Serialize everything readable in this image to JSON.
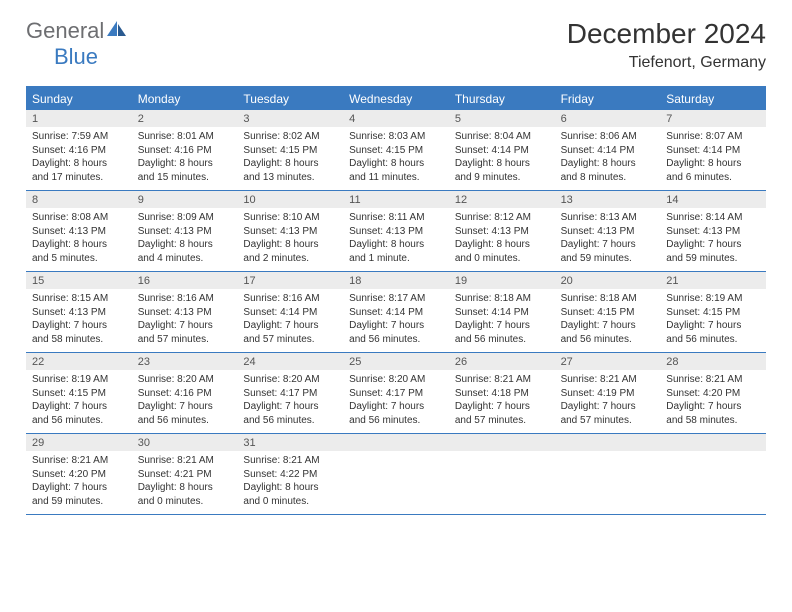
{
  "logo": {
    "general": "General",
    "blue": "Blue"
  },
  "title": "December 2024",
  "subtitle": "Tiefenort, Germany",
  "colors": {
    "accent": "#3a7ac0",
    "band": "#ececec",
    "text": "#333333",
    "logo_gray": "#6d6e71"
  },
  "dow": [
    "Sunday",
    "Monday",
    "Tuesday",
    "Wednesday",
    "Thursday",
    "Friday",
    "Saturday"
  ],
  "weeks": [
    [
      {
        "n": "1",
        "sr": "7:59 AM",
        "ss": "4:16 PM",
        "dl": "8 hours and 17 minutes."
      },
      {
        "n": "2",
        "sr": "8:01 AM",
        "ss": "4:16 PM",
        "dl": "8 hours and 15 minutes."
      },
      {
        "n": "3",
        "sr": "8:02 AM",
        "ss": "4:15 PM",
        "dl": "8 hours and 13 minutes."
      },
      {
        "n": "4",
        "sr": "8:03 AM",
        "ss": "4:15 PM",
        "dl": "8 hours and 11 minutes."
      },
      {
        "n": "5",
        "sr": "8:04 AM",
        "ss": "4:14 PM",
        "dl": "8 hours and 9 minutes."
      },
      {
        "n": "6",
        "sr": "8:06 AM",
        "ss": "4:14 PM",
        "dl": "8 hours and 8 minutes."
      },
      {
        "n": "7",
        "sr": "8:07 AM",
        "ss": "4:14 PM",
        "dl": "8 hours and 6 minutes."
      }
    ],
    [
      {
        "n": "8",
        "sr": "8:08 AM",
        "ss": "4:13 PM",
        "dl": "8 hours and 5 minutes."
      },
      {
        "n": "9",
        "sr": "8:09 AM",
        "ss": "4:13 PM",
        "dl": "8 hours and 4 minutes."
      },
      {
        "n": "10",
        "sr": "8:10 AM",
        "ss": "4:13 PM",
        "dl": "8 hours and 2 minutes."
      },
      {
        "n": "11",
        "sr": "8:11 AM",
        "ss": "4:13 PM",
        "dl": "8 hours and 1 minute."
      },
      {
        "n": "12",
        "sr": "8:12 AM",
        "ss": "4:13 PM",
        "dl": "8 hours and 0 minutes."
      },
      {
        "n": "13",
        "sr": "8:13 AM",
        "ss": "4:13 PM",
        "dl": "7 hours and 59 minutes."
      },
      {
        "n": "14",
        "sr": "8:14 AM",
        "ss": "4:13 PM",
        "dl": "7 hours and 59 minutes."
      }
    ],
    [
      {
        "n": "15",
        "sr": "8:15 AM",
        "ss": "4:13 PM",
        "dl": "7 hours and 58 minutes."
      },
      {
        "n": "16",
        "sr": "8:16 AM",
        "ss": "4:13 PM",
        "dl": "7 hours and 57 minutes."
      },
      {
        "n": "17",
        "sr": "8:16 AM",
        "ss": "4:14 PM",
        "dl": "7 hours and 57 minutes."
      },
      {
        "n": "18",
        "sr": "8:17 AM",
        "ss": "4:14 PM",
        "dl": "7 hours and 56 minutes."
      },
      {
        "n": "19",
        "sr": "8:18 AM",
        "ss": "4:14 PM",
        "dl": "7 hours and 56 minutes."
      },
      {
        "n": "20",
        "sr": "8:18 AM",
        "ss": "4:15 PM",
        "dl": "7 hours and 56 minutes."
      },
      {
        "n": "21",
        "sr": "8:19 AM",
        "ss": "4:15 PM",
        "dl": "7 hours and 56 minutes."
      }
    ],
    [
      {
        "n": "22",
        "sr": "8:19 AM",
        "ss": "4:15 PM",
        "dl": "7 hours and 56 minutes."
      },
      {
        "n": "23",
        "sr": "8:20 AM",
        "ss": "4:16 PM",
        "dl": "7 hours and 56 minutes."
      },
      {
        "n": "24",
        "sr": "8:20 AM",
        "ss": "4:17 PM",
        "dl": "7 hours and 56 minutes."
      },
      {
        "n": "25",
        "sr": "8:20 AM",
        "ss": "4:17 PM",
        "dl": "7 hours and 56 minutes."
      },
      {
        "n": "26",
        "sr": "8:21 AM",
        "ss": "4:18 PM",
        "dl": "7 hours and 57 minutes."
      },
      {
        "n": "27",
        "sr": "8:21 AM",
        "ss": "4:19 PM",
        "dl": "7 hours and 57 minutes."
      },
      {
        "n": "28",
        "sr": "8:21 AM",
        "ss": "4:20 PM",
        "dl": "7 hours and 58 minutes."
      }
    ],
    [
      {
        "n": "29",
        "sr": "8:21 AM",
        "ss": "4:20 PM",
        "dl": "7 hours and 59 minutes."
      },
      {
        "n": "30",
        "sr": "8:21 AM",
        "ss": "4:21 PM",
        "dl": "8 hours and 0 minutes."
      },
      {
        "n": "31",
        "sr": "8:21 AM",
        "ss": "4:22 PM",
        "dl": "8 hours and 0 minutes."
      },
      {
        "n": "",
        "sr": "",
        "ss": "",
        "dl": ""
      },
      {
        "n": "",
        "sr": "",
        "ss": "",
        "dl": ""
      },
      {
        "n": "",
        "sr": "",
        "ss": "",
        "dl": ""
      },
      {
        "n": "",
        "sr": "",
        "ss": "",
        "dl": ""
      }
    ]
  ],
  "labels": {
    "sunrise": "Sunrise:",
    "sunset": "Sunset:",
    "daylight": "Daylight:"
  }
}
